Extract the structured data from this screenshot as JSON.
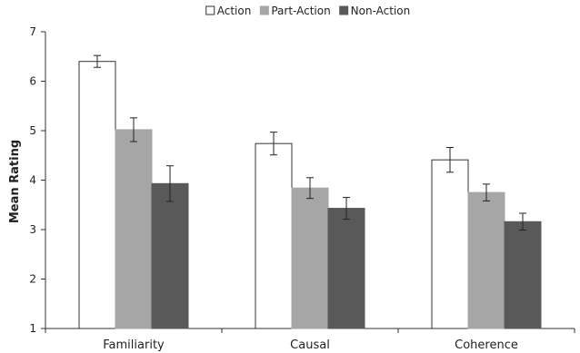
{
  "chart_data": {
    "type": "bar",
    "title": "",
    "xlabel": "",
    "ylabel": "Mean Rating",
    "ylim": [
      1,
      7
    ],
    "yticks": [
      1,
      2,
      3,
      4,
      5,
      6,
      7
    ],
    "categories": [
      "Familiarity",
      "Causal",
      "Coherence"
    ],
    "legend_position": "top-center",
    "grid": false,
    "error_bars": true,
    "series": [
      {
        "name": "Action",
        "color": "#ffffff",
        "stroke": "#333333",
        "values": [
          6.4,
          4.74,
          4.41
        ],
        "errors": [
          0.12,
          0.23,
          0.25
        ]
      },
      {
        "name": "Part-Action",
        "color": "#a6a6a6",
        "stroke": "#a6a6a6",
        "values": [
          5.02,
          3.84,
          3.75
        ],
        "errors": [
          0.24,
          0.21,
          0.17
        ]
      },
      {
        "name": "Non-Action",
        "color": "#595959",
        "stroke": "#595959",
        "values": [
          3.93,
          3.43,
          3.16
        ],
        "errors": [
          0.36,
          0.22,
          0.17
        ]
      }
    ]
  }
}
